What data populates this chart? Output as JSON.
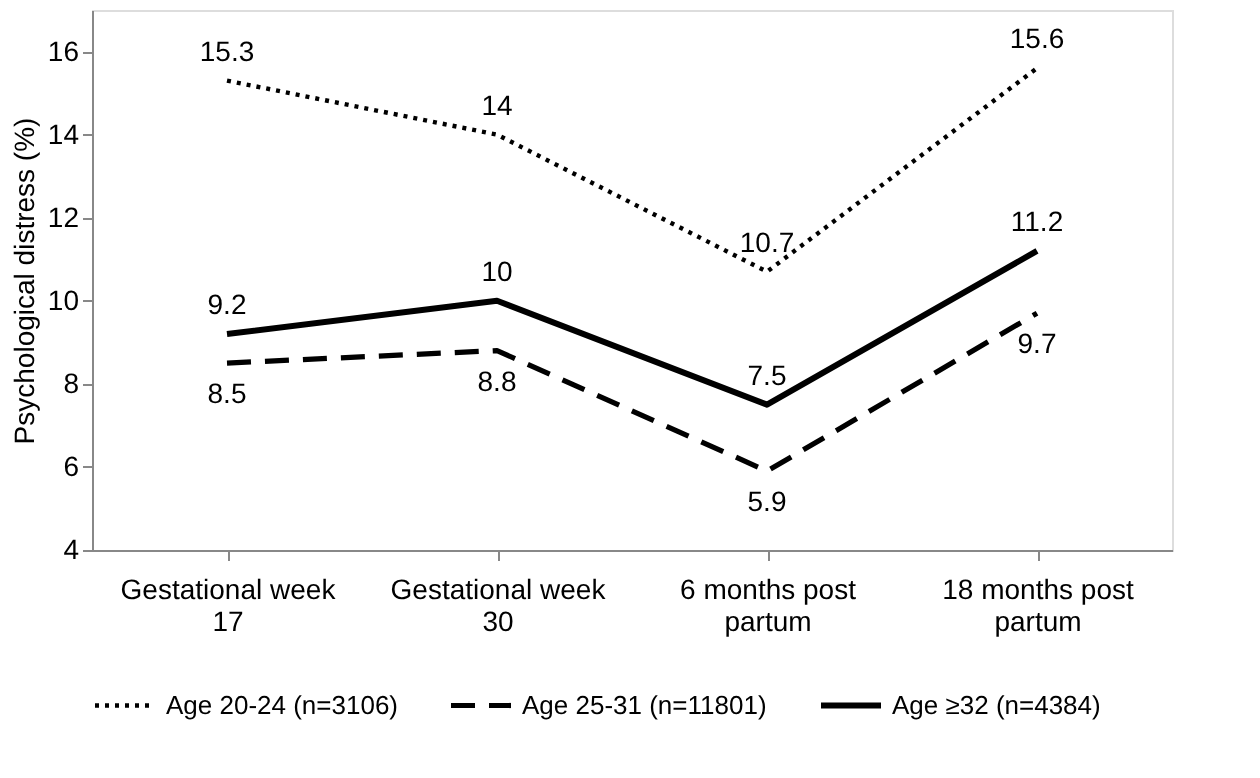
{
  "chart_data": {
    "type": "line",
    "ylabel": "Psychological distress (%)",
    "categories": [
      "Gestational week 17",
      "Gestational week 30",
      "6 months post partum",
      "18 months post partum"
    ],
    "series": [
      {
        "name": "Age 20-24 (n=3106)",
        "color": "#000000",
        "line_style": "dotted",
        "values": [
          15.3,
          14,
          10.7,
          15.6
        ]
      },
      {
        "name": "Age 25-31 (n=11801)",
        "color": "#000000",
        "line_style": "dashed",
        "values": [
          8.5,
          8.8,
          5.9,
          9.7
        ]
      },
      {
        "name": "Age ≥32 (n=4384)",
        "color": "#000000",
        "line_style": "solid",
        "values": [
          9.2,
          10,
          7.5,
          11.2
        ]
      }
    ],
    "ylim": [
      4,
      17
    ],
    "yticks": [
      4,
      6,
      8,
      10,
      12,
      14,
      16
    ],
    "grid": false,
    "legend": "bottom",
    "data_labels": true,
    "marker": "none"
  }
}
